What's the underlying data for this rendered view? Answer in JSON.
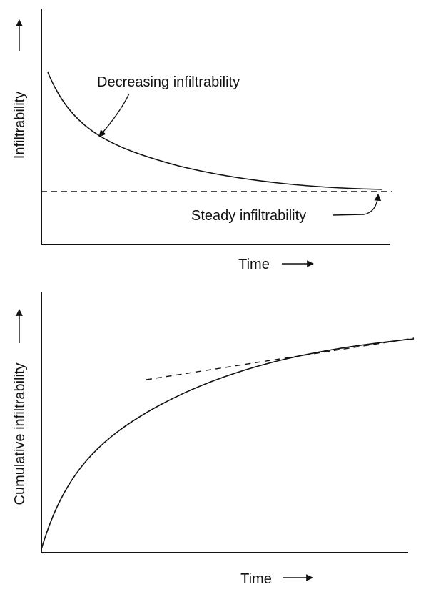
{
  "top_diagram": {
    "y_axis_label": "Infiltrability",
    "x_axis_label": "Time",
    "curve_label": "Decreasing infiltrability",
    "steady_label": "Steady infiltrability"
  },
  "bottom_diagram": {
    "y_axis_label": "Cumulative infiltrability",
    "x_axis_label": "Time"
  },
  "colors": {
    "ink": "#111111",
    "background": "#ffffff"
  }
}
